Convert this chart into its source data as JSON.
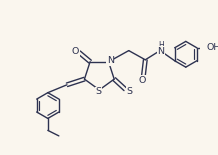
{
  "bg_color": "#faf6ee",
  "line_color": "#2d3250",
  "line_width": 1.0,
  "font_size_atom": 6.8,
  "font_size_h": 5.5,
  "figsize": [
    2.18,
    1.55
  ],
  "dpi": 100,
  "xlim": [
    0,
    218
  ],
  "ylim": [
    0,
    155
  ]
}
